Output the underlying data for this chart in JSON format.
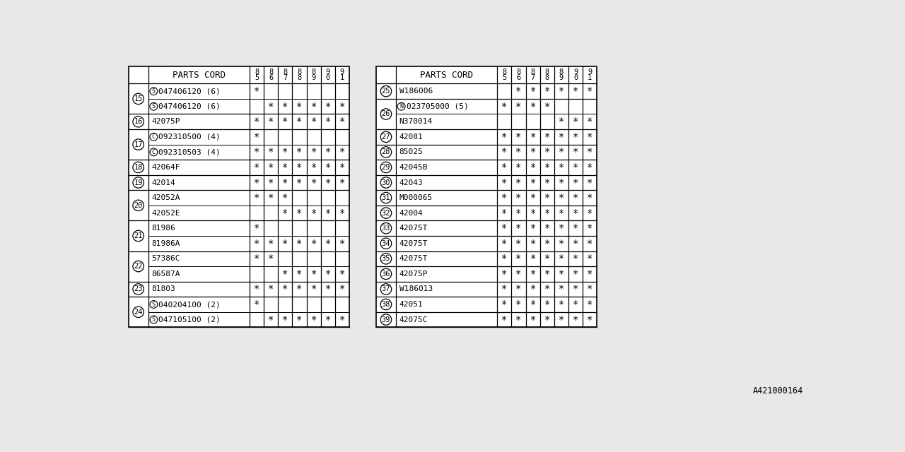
{
  "footnote": "A421000164",
  "bg_color": "#e8e8e8",
  "col_headers": [
    "85",
    "86",
    "87",
    "88",
    "89",
    "90",
    "91"
  ],
  "left_table": {
    "header": "PARTS CORD",
    "rows": [
      {
        "ref": "15",
        "parts": [
          {
            "name": "(S)047406120 (6)",
            "marks": [
              1,
              0,
              0,
              0,
              0,
              0,
              0
            ]
          },
          {
            "name": "(S)047406120 (6)",
            "marks": [
              0,
              1,
              1,
              1,
              1,
              1,
              1
            ]
          }
        ]
      },
      {
        "ref": "16",
        "parts": [
          {
            "name": "42075P",
            "marks": [
              1,
              1,
              1,
              1,
              1,
              1,
              1
            ]
          }
        ]
      },
      {
        "ref": "17",
        "parts": [
          {
            "name": "(C)092310500 (4)",
            "marks": [
              1,
              0,
              0,
              0,
              0,
              0,
              0
            ]
          },
          {
            "name": "(C)092310503 (4)",
            "marks": [
              1,
              1,
              1,
              1,
              1,
              1,
              1
            ]
          }
        ]
      },
      {
        "ref": "18",
        "parts": [
          {
            "name": "42064F",
            "marks": [
              1,
              1,
              1,
              1,
              1,
              1,
              1
            ]
          }
        ]
      },
      {
        "ref": "19",
        "parts": [
          {
            "name": "42014",
            "marks": [
              1,
              1,
              1,
              1,
              1,
              1,
              1
            ]
          }
        ]
      },
      {
        "ref": "20",
        "parts": [
          {
            "name": "42052A",
            "marks": [
              1,
              1,
              1,
              0,
              0,
              0,
              0
            ]
          },
          {
            "name": "42052E",
            "marks": [
              0,
              0,
              1,
              1,
              1,
              1,
              1
            ]
          }
        ]
      },
      {
        "ref": "21",
        "parts": [
          {
            "name": "81986",
            "marks": [
              1,
              0,
              0,
              0,
              0,
              0,
              0
            ]
          },
          {
            "name": "81986A",
            "marks": [
              1,
              1,
              1,
              1,
              1,
              1,
              1
            ]
          }
        ]
      },
      {
        "ref": "22",
        "parts": [
          {
            "name": "57386C",
            "marks": [
              1,
              1,
              0,
              0,
              0,
              0,
              0
            ]
          },
          {
            "name": "86587A",
            "marks": [
              0,
              0,
              1,
              1,
              1,
              1,
              1
            ]
          }
        ]
      },
      {
        "ref": "23",
        "parts": [
          {
            "name": "81803",
            "marks": [
              1,
              1,
              1,
              1,
              1,
              1,
              1
            ]
          }
        ]
      },
      {
        "ref": "24",
        "parts": [
          {
            "name": "(S)040204100 (2)",
            "marks": [
              1,
              0,
              0,
              0,
              0,
              0,
              0
            ]
          },
          {
            "name": "(S)047105100 (2)",
            "marks": [
              0,
              1,
              1,
              1,
              1,
              1,
              1
            ]
          }
        ]
      }
    ]
  },
  "right_table": {
    "header": "PARTS CORD",
    "rows": [
      {
        "ref": "25",
        "parts": [
          {
            "name": "W186006",
            "marks": [
              0,
              1,
              1,
              1,
              1,
              1,
              1
            ]
          }
        ]
      },
      {
        "ref": "26",
        "parts": [
          {
            "name": "(N)023705000 (5)",
            "marks": [
              1,
              1,
              1,
              1,
              0,
              0,
              0
            ]
          },
          {
            "name": "N370014",
            "marks": [
              0,
              0,
              0,
              0,
              1,
              1,
              1
            ]
          }
        ]
      },
      {
        "ref": "27",
        "parts": [
          {
            "name": "42081",
            "marks": [
              1,
              1,
              1,
              1,
              1,
              1,
              1
            ]
          }
        ]
      },
      {
        "ref": "28",
        "parts": [
          {
            "name": "85025",
            "marks": [
              1,
              1,
              1,
              1,
              1,
              1,
              1
            ]
          }
        ]
      },
      {
        "ref": "29",
        "parts": [
          {
            "name": "42045B",
            "marks": [
              1,
              1,
              1,
              1,
              1,
              1,
              1
            ]
          }
        ]
      },
      {
        "ref": "30",
        "parts": [
          {
            "name": "42043",
            "marks": [
              1,
              1,
              1,
              1,
              1,
              1,
              1
            ]
          }
        ]
      },
      {
        "ref": "31",
        "parts": [
          {
            "name": "M000065",
            "marks": [
              1,
              1,
              1,
              1,
              1,
              1,
              1
            ]
          }
        ]
      },
      {
        "ref": "32",
        "parts": [
          {
            "name": "42004",
            "marks": [
              1,
              1,
              1,
              1,
              1,
              1,
              1
            ]
          }
        ]
      },
      {
        "ref": "33",
        "parts": [
          {
            "name": "42075T",
            "marks": [
              1,
              1,
              1,
              1,
              1,
              1,
              1
            ]
          }
        ]
      },
      {
        "ref": "34",
        "parts": [
          {
            "name": "42075T",
            "marks": [
              1,
              1,
              1,
              1,
              1,
              1,
              1
            ]
          }
        ]
      },
      {
        "ref": "35",
        "parts": [
          {
            "name": "42075T",
            "marks": [
              1,
              1,
              1,
              1,
              1,
              1,
              1
            ]
          }
        ]
      },
      {
        "ref": "36",
        "parts": [
          {
            "name": "42075P",
            "marks": [
              1,
              1,
              1,
              1,
              1,
              1,
              1
            ]
          }
        ]
      },
      {
        "ref": "37",
        "parts": [
          {
            "name": "W186013",
            "marks": [
              1,
              1,
              1,
              1,
              1,
              1,
              1
            ]
          }
        ]
      },
      {
        "ref": "38",
        "parts": [
          {
            "name": "42051",
            "marks": [
              1,
              1,
              1,
              1,
              1,
              1,
              1
            ]
          }
        ]
      },
      {
        "ref": "39",
        "parts": [
          {
            "name": "42075C",
            "marks": [
              1,
              1,
              1,
              1,
              1,
              1,
              1
            ]
          }
        ]
      }
    ]
  }
}
